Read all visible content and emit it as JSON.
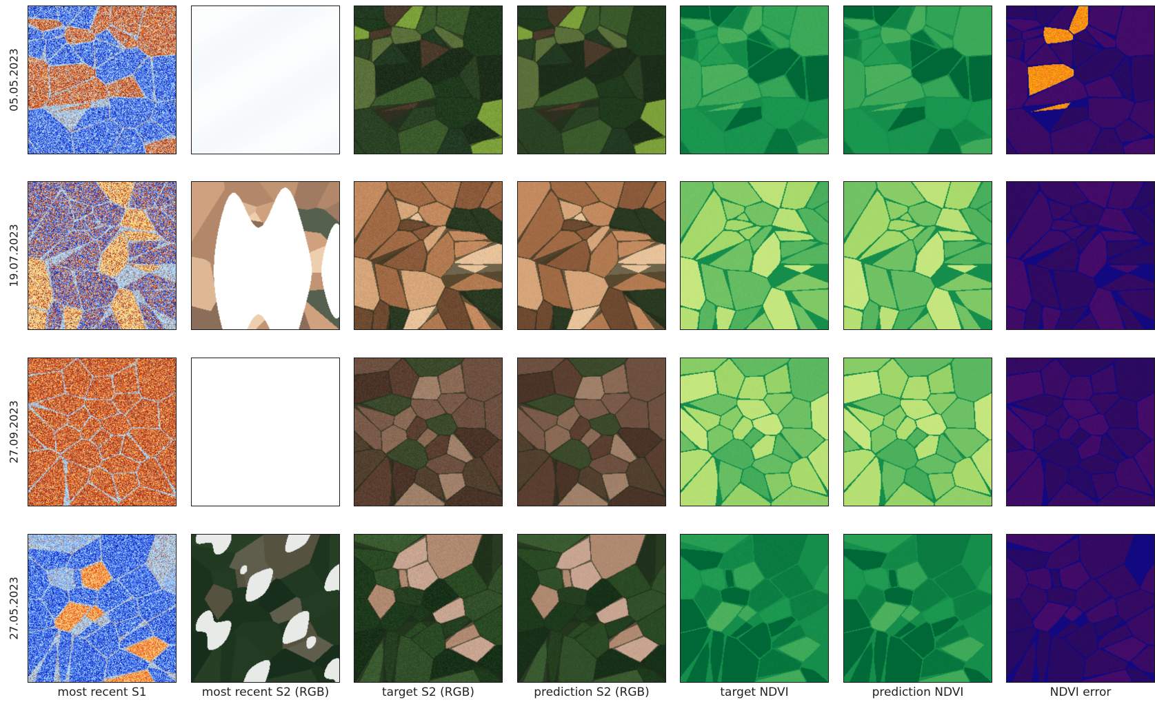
{
  "rows": [
    {
      "date": "05.05.2023"
    },
    {
      "date": "19.07.2023"
    },
    {
      "date": "27.09.2023"
    },
    {
      "date": "27.05.2023"
    }
  ],
  "columns": [
    {
      "label": "most recent S1",
      "kind": "sar"
    },
    {
      "label": "most recent S2 (RGB)",
      "kind": "s2_cloudy"
    },
    {
      "label": "target S2 (RGB)",
      "kind": "rgb"
    },
    {
      "label": "prediction S2 (RGB)",
      "kind": "rgb_pred"
    },
    {
      "label": "target NDVI",
      "kind": "ndvi"
    },
    {
      "label": "prediction NDVI",
      "kind": "ndvi_pred"
    },
    {
      "label": "NDVI error",
      "kind": "error"
    }
  ],
  "colors": {
    "sar": [
      "#0d1a8c",
      "#1e3fd6",
      "#3a6cff",
      "#7fb8ff",
      "#c8f0ff",
      "#8a2a18",
      "#c8401a",
      "#ff8a3a",
      "#ffe08a"
    ],
    "ndvi": [
      "#006837",
      "#1a9850",
      "#66bd63",
      "#a6d96a",
      "#d9ef8b"
    ],
    "error": [
      "#0d0887",
      "#2a0a5e",
      "#4b0c6b",
      "#781c6d",
      "#a52c60",
      "#cf4446",
      "#ed6925",
      "#fb9b06",
      "#f7d13d"
    ]
  },
  "palettes": {
    "row0": {
      "fields": [
        "#1c2e1a",
        "#2a4223",
        "#1f3a1d",
        "#3b5a2c",
        "#4a3a2a",
        "#5a6f3a",
        "#223a22",
        "#7ca03a"
      ],
      "s2": "cloud_light_blue",
      "sar_bias": "blue"
    },
    "row1": {
      "fields": [
        "#a06a45",
        "#c48a5f",
        "#8a5a3a",
        "#d6a57a",
        "#e8c29a",
        "#2a3a22",
        "#b27a50",
        "#6e4a30"
      ],
      "s2": "cloud_partial",
      "sar_bias": "mixed"
    },
    "row2": {
      "fields": [
        "#5a3f30",
        "#6e5040",
        "#4a3428",
        "#8a6a55",
        "#3a4a2a",
        "#7a5a48",
        "#a08068",
        "#52402f"
      ],
      "s2": "blank",
      "sar_bias": "red"
    },
    "row3": {
      "fields": [
        "#1e3a1c",
        "#2a4a24",
        "#173018",
        "#3a5a30",
        "#b08a70",
        "#c8a590",
        "#243f20",
        "#31502a"
      ],
      "s2": "cloud_patches",
      "sar_bias": "blue_cyan"
    }
  }
}
